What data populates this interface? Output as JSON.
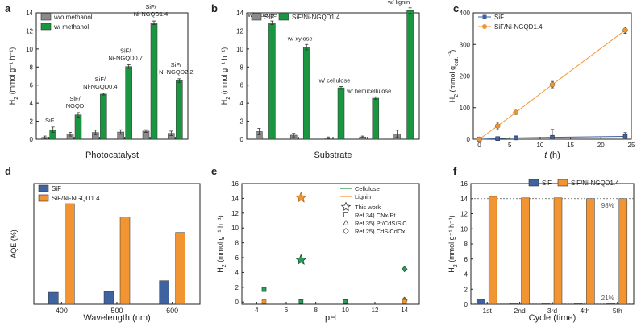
{
  "colors": {
    "gray": "#8a8a8a",
    "green": "#1a9641",
    "blue": "#3f62a0",
    "orange": "#f29432",
    "lightgreen": "#1f8f3a",
    "axis": "#222222"
  },
  "chart_data": [
    {
      "panel": "a",
      "type": "bar",
      "categories": [
        "SiF",
        "SiF/NGQD",
        "SiF/Ni-NGQD0.4",
        "SiF/Ni-NGQD0.7",
        "SiF/Ni-NGQD1.4",
        "SiF/Ni-NGQD2.2"
      ],
      "category_labels": [
        [
          "SiF"
        ],
        [
          "SiF/",
          "NGQD"
        ],
        [
          "SiF/",
          "Ni-NGQD0.4"
        ],
        [
          "SiF/",
          "Ni-NGQD0.7"
        ],
        [
          "SiF/",
          "Ni-NGQD1.4"
        ],
        [
          "SiF/",
          "Ni-NGQD2.2"
        ]
      ],
      "series": [
        {
          "name": "w/o methanol",
          "values": [
            0.2,
            0.55,
            0.75,
            0.8,
            0.9,
            0.65
          ],
          "errors": [
            0.15,
            0.2,
            0.25,
            0.25,
            0.15,
            0.25
          ]
        },
        {
          "name": "w/ methanol",
          "values": [
            1.05,
            2.7,
            5.0,
            8.05,
            12.9,
            6.5
          ],
          "errors": [
            0.3,
            0.25,
            0.1,
            0.2,
            0.2,
            0.2
          ]
        }
      ],
      "xlabel": "Photocatalyst",
      "ylabel": "H2 (mmol g⁻¹ h⁻¹)",
      "ylim": [
        0,
        14
      ],
      "yticks": [
        0,
        2,
        4,
        6,
        8,
        10,
        12,
        14
      ]
    },
    {
      "panel": "b",
      "type": "bar",
      "categories": [
        "w/ glucose",
        "w/ xylose",
        "w/ cellulose",
        "w/ hemicellulose",
        "w/ lignin"
      ],
      "series": [
        {
          "name": "SiF",
          "values": [
            0.85,
            0.45,
            0.15,
            0.25,
            0.6
          ],
          "errors": [
            0.35,
            0.2,
            0.1,
            0.1,
            0.4
          ]
        },
        {
          "name": "SiF/Ni-NGQD1.4",
          "values": [
            12.9,
            10.2,
            5.7,
            4.55,
            14.25
          ],
          "errors": [
            0.2,
            0.3,
            0.15,
            0.15,
            0.3
          ]
        }
      ],
      "xlabel": "Substrate",
      "ylabel": "H2 (mmol g⁻¹ h⁻¹)",
      "ylim": [
        0,
        14
      ],
      "yticks": [
        0,
        2,
        4,
        6,
        8,
        10,
        12,
        14
      ]
    },
    {
      "panel": "c",
      "type": "line",
      "series": [
        {
          "name": "SiF",
          "x": [
            0,
            3,
            6,
            12,
            24
          ],
          "y": [
            0,
            2,
            4,
            6,
            9
          ],
          "errors": [
            0,
            4,
            6,
            25,
            12
          ]
        },
        {
          "name": "SiF/Ni-NGQD1.4",
          "x": [
            0,
            3,
            6,
            12,
            24
          ],
          "y": [
            0,
            42,
            85,
            173,
            345
          ],
          "errors": [
            0,
            12,
            5,
            10,
            10
          ]
        }
      ],
      "xlabel": "t (h)",
      "ylabel": "H2 (mmol gcat.⁻¹)",
      "xlim": [
        -1,
        25
      ],
      "ylim": [
        0,
        400
      ],
      "xticks": [
        0,
        5,
        10,
        15,
        20,
        25
      ],
      "yticks": [
        0,
        100,
        200,
        300,
        400
      ]
    },
    {
      "panel": "d",
      "type": "bar",
      "categories": [
        "400",
        "500",
        "600"
      ],
      "series": [
        {
          "name": "SiF",
          "values": [
            4.5,
            4.8,
            8.8
          ]
        },
        {
          "name": "SiF/Ni-NGQD1.4",
          "values": [
            37.5,
            32.5,
            26.8
          ]
        }
      ],
      "xlabel": "Wavelength (nm)",
      "ylabel": "AQE (%)",
      "ylim": [
        0,
        45
      ]
    },
    {
      "panel": "e",
      "type": "scatter",
      "legend_lines": [
        {
          "label": "Cellulose",
          "color": "#1f8f3a"
        },
        {
          "label": "Lignin",
          "color": "#f29432"
        }
      ],
      "legend_markers": [
        {
          "label": "This work",
          "marker": "star"
        },
        {
          "label": "Ref.34) CNx/Pt",
          "marker": "square"
        },
        {
          "label": "Ref.35) Pt/CdS/SiC",
          "marker": "triangle"
        },
        {
          "label": "Ref.25) CdS/CdOx",
          "marker": "diamond"
        }
      ],
      "points": [
        {
          "x": 7,
          "y": 14.1,
          "marker": "star",
          "substrate": "Lignin"
        },
        {
          "x": 7,
          "y": 5.7,
          "marker": "star",
          "substrate": "Cellulose"
        },
        {
          "x": 4.5,
          "y": 1.7,
          "marker": "square",
          "substrate": "Cellulose"
        },
        {
          "x": 4.5,
          "y": 0.05,
          "marker": "square",
          "substrate": "Lignin"
        },
        {
          "x": 7,
          "y": 0.05,
          "marker": "square",
          "substrate": "Cellulose"
        },
        {
          "x": 10,
          "y": 0.05,
          "marker": "square",
          "substrate": "Cellulose"
        },
        {
          "x": 14,
          "y": 4.45,
          "marker": "diamond",
          "substrate": "Cellulose"
        },
        {
          "x": 14,
          "y": 0.3,
          "marker": "diamond",
          "substrate": "Cellulose"
        },
        {
          "x": 14,
          "y": 0.15,
          "marker": "diamond",
          "substrate": "Lignin"
        },
        {
          "x": 14,
          "y": 0.05,
          "marker": "square",
          "substrate": "Lignin"
        }
      ],
      "xlabel": "pH",
      "ylabel": "H2 (mmol g⁻¹ h⁻¹)",
      "xlim": [
        3,
        15
      ],
      "ylim": [
        -0.3,
        16
      ],
      "xticks": [
        4,
        6,
        8,
        10,
        12,
        14
      ],
      "yticks": [
        0,
        2,
        4,
        6,
        8,
        10,
        12,
        14,
        16
      ]
    },
    {
      "panel": "f",
      "type": "bar",
      "categories": [
        "1st",
        "2nd",
        "3rd",
        "4th",
        "5th"
      ],
      "series": [
        {
          "name": "SiF",
          "values": [
            0.6,
            0.15,
            0.15,
            0.12,
            0.12
          ]
        },
        {
          "name": "SiF/Ni-NGQD1.4",
          "values": [
            14.3,
            14.1,
            14.1,
            14.0,
            14.0
          ]
        }
      ],
      "reference_lines": [
        14.0,
        0.13
      ],
      "annotations": [
        "98%",
        "21%"
      ],
      "xlabel": "Cycle (time)",
      "ylabel": "H2 (mmol g⁻¹ h⁻¹)",
      "ylim": [
        0,
        16
      ],
      "yticks": [
        0,
        2,
        4,
        6,
        8,
        10,
        12,
        14,
        16
      ]
    }
  ]
}
